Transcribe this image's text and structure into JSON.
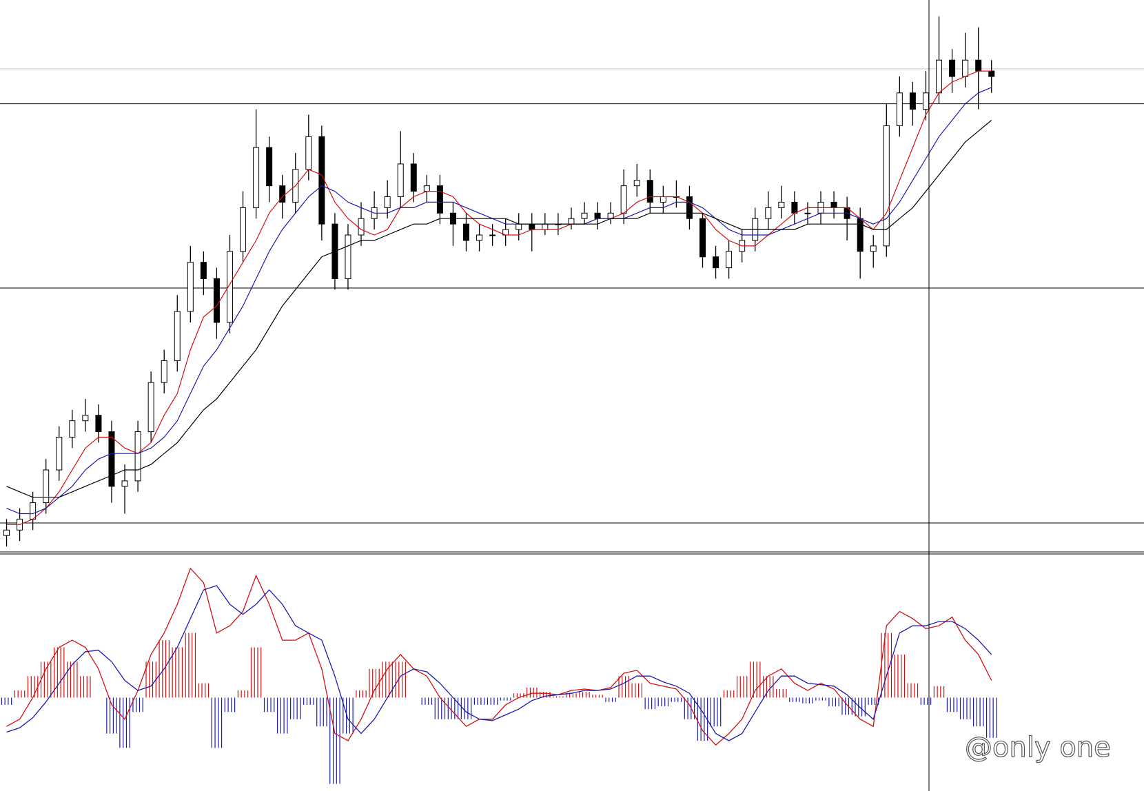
{
  "chart_data": [
    {
      "type": "candlestick",
      "ylim": [
        0,
        101
      ],
      "open": [
        3,
        4,
        6,
        9,
        15,
        21,
        24,
        25,
        22,
        12,
        13,
        22,
        31,
        35,
        44,
        53,
        50,
        42,
        55,
        63,
        74,
        67,
        64,
        70,
        76,
        60,
        50,
        58,
        61,
        63,
        65,
        71,
        66,
        67,
        62,
        60,
        57,
        58,
        58,
        59,
        60,
        59,
        60,
        60,
        61,
        62,
        61,
        62,
        67,
        68,
        64,
        65,
        65,
        61,
        54,
        52,
        55,
        57,
        61,
        63,
        64,
        62,
        62,
        64,
        63,
        61,
        55,
        56,
        78,
        84,
        81,
        84,
        90,
        87,
        90,
        88
      ],
      "high": [
        6,
        8,
        11,
        17,
        23,
        26,
        28,
        27,
        24,
        16,
        24,
        33,
        37,
        47,
        56,
        55,
        52,
        58,
        66,
        81,
        76,
        69,
        73,
        80,
        78,
        62,
        60,
        64,
        66,
        68,
        77,
        73,
        69,
        69,
        64,
        62,
        60,
        60,
        61,
        62,
        62,
        62,
        62,
        63,
        64,
        64,
        64,
        70,
        71,
        70,
        67,
        68,
        67,
        62,
        56,
        57,
        59,
        63,
        66,
        67,
        66,
        64,
        66,
        66,
        65,
        63,
        58,
        82,
        87,
        86,
        88,
        98,
        92,
        95,
        96,
        90
      ],
      "low": [
        1,
        2,
        4,
        7,
        13,
        19,
        22,
        20,
        9,
        7,
        11,
        20,
        29,
        33,
        42,
        47,
        39,
        40,
        53,
        61,
        64,
        61,
        62,
        68,
        57,
        48,
        48,
        56,
        59,
        61,
        63,
        64,
        64,
        60,
        56,
        55,
        55,
        56,
        56,
        57,
        55,
        58,
        58,
        59,
        60,
        59,
        60,
        60,
        65,
        62,
        62,
        63,
        59,
        52,
        50,
        50,
        53,
        55,
        59,
        61,
        60,
        60,
        60,
        61,
        57,
        50,
        52,
        54,
        76,
        78,
        79,
        82,
        84,
        85,
        81,
        84
      ],
      "close": [
        4,
        6,
        9,
        15,
        21,
        24,
        25,
        22,
        12,
        13,
        22,
        31,
        35,
        44,
        53,
        50,
        42,
        55,
        63,
        74,
        67,
        64,
        70,
        76,
        60,
        50,
        58,
        61,
        63,
        65,
        71,
        66,
        67,
        62,
        60,
        57,
        58,
        58,
        59,
        60,
        59,
        60,
        60,
        61,
        62,
        61,
        62,
        67,
        68,
        64,
        65,
        65,
        61,
        54,
        52,
        55,
        57,
        61,
        63,
        64,
        62,
        62,
        64,
        63,
        61,
        55,
        56,
        78,
        84,
        81,
        84,
        90,
        87,
        90,
        88,
        87
      ],
      "bull_color": "#ffffff",
      "bear_color": "#000000",
      "lines": [
        {
          "color": "#d01010",
          "values": [
            5,
            5,
            6,
            8,
            11,
            15,
            19,
            21,
            21,
            19,
            18,
            20,
            25,
            29,
            37,
            43,
            45,
            49,
            53,
            57,
            62,
            65,
            67,
            70,
            69,
            64,
            61,
            59,
            58,
            59,
            63,
            65,
            66,
            66,
            65,
            62,
            60,
            59,
            58,
            58,
            59,
            59,
            59,
            60,
            60,
            61,
            61,
            62,
            64,
            65,
            65,
            65,
            64,
            62,
            59,
            57,
            56,
            56,
            58,
            60,
            62,
            63,
            63,
            63,
            63,
            61,
            59,
            62,
            68,
            74,
            80,
            84,
            86,
            87,
            88,
            88
          ]
        },
        {
          "color": "#1a1ab0",
          "values": [
            8,
            7,
            7,
            8,
            10,
            12,
            15,
            17,
            18,
            18,
            18,
            19,
            21,
            24,
            29,
            34,
            37,
            41,
            45,
            50,
            55,
            59,
            62,
            65,
            67,
            66,
            64,
            63,
            62,
            62,
            63,
            63,
            64,
            64,
            64,
            63,
            62,
            61,
            60,
            60,
            60,
            60,
            60,
            60,
            60,
            61,
            61,
            61,
            62,
            63,
            63,
            64,
            64,
            63,
            61,
            59,
            58,
            58,
            58,
            59,
            60,
            61,
            62,
            62,
            62,
            61,
            60,
            61,
            64,
            68,
            72,
            76,
            79,
            82,
            84,
            85
          ]
        },
        {
          "color": "#000000",
          "values": [
            12,
            11,
            10,
            10,
            10,
            11,
            12,
            13,
            14,
            15,
            15,
            16,
            18,
            20,
            23,
            26,
            28,
            31,
            34,
            37,
            41,
            45,
            48,
            51,
            54,
            55,
            56,
            57,
            57,
            58,
            59,
            60,
            60,
            61,
            61,
            61,
            61,
            61,
            61,
            60,
            60,
            60,
            60,
            60,
            60,
            60,
            61,
            61,
            61,
            62,
            62,
            62,
            62,
            62,
            61,
            60,
            59,
            59,
            59,
            59,
            59,
            60,
            60,
            60,
            60,
            60,
            59,
            59,
            61,
            63,
            66,
            69,
            72,
            75,
            77,
            79
          ]
        }
      ],
      "hlines": [
        {
          "value": 88.4,
          "color": "#c8c8c8"
        },
        {
          "value": 82,
          "color": "#000000"
        },
        {
          "value": 48.3,
          "color": "#000000"
        },
        {
          "value": 5.3,
          "color": "#000000"
        }
      ]
    },
    {
      "type": "macd",
      "ylim": [
        -6.5,
        10
      ],
      "histogram": {
        "positive_color": "#d01010",
        "negative_color": "#1a1ab0",
        "values": [
          -0.5,
          0.5,
          1.5,
          2.5,
          3.5,
          2.5,
          1.5,
          0,
          -2.5,
          -3.5,
          -1,
          2.5,
          4,
          3.5,
          4.5,
          1,
          -3.5,
          -1,
          0.5,
          3.5,
          -1,
          -2.5,
          -1.5,
          -0.5,
          -2,
          -6,
          -2.5,
          0.5,
          2,
          2.5,
          2.5,
          0,
          -0.5,
          -1.5,
          -1.5,
          -1.5,
          -0.5,
          -0.5,
          -0.2,
          0.3,
          0.7,
          0.4,
          0.1,
          0.3,
          0.4,
          0.2,
          -0.3,
          1.5,
          1,
          -0.8,
          -0.6,
          -0.3,
          -1.5,
          -3,
          -2,
          0.5,
          1.5,
          2.5,
          1.5,
          0.6,
          -0.3,
          -0.4,
          -0.2,
          -0.6,
          -1.2,
          -1.3,
          -0.5,
          4.5,
          3,
          1,
          -0.5,
          0.8,
          -1,
          -1.5,
          -2,
          -2.8
        ]
      },
      "series": [
        {
          "color": "#d01010",
          "values": [
            -2,
            -1.5,
            0,
            2,
            3.5,
            4,
            3.5,
            2,
            -0.5,
            -1.5,
            0.5,
            3,
            4.5,
            6.5,
            9,
            8,
            4.5,
            5,
            6,
            8.5,
            6.5,
            4,
            4,
            4.5,
            2,
            -2.5,
            -3,
            -1.5,
            0.5,
            2,
            3,
            2,
            1.5,
            0,
            -1,
            -2,
            -1.5,
            -1.5,
            -0.5,
            0,
            0.3,
            0.3,
            0.2,
            0.5,
            0.6,
            0.5,
            0.7,
            1.7,
            1.9,
            1,
            0.8,
            0.6,
            -0.5,
            -2.3,
            -3.3,
            -2.5,
            -1.5,
            0.5,
            1.5,
            2,
            1,
            0.5,
            1,
            0.6,
            -0.5,
            -1.5,
            -2,
            5,
            6,
            5.5,
            4.8,
            5,
            5.6,
            4,
            3,
            1.2
          ]
        },
        {
          "color": "#1a1ab0",
          "values": [
            -2.4,
            -2.1,
            -1.4,
            -0.3,
            1,
            2.3,
            3.2,
            3.3,
            2.5,
            1.2,
            0.5,
            0.8,
            2,
            3.5,
            5.5,
            7.5,
            7.8,
            6.5,
            5.8,
            6.5,
            7.5,
            6.5,
            5,
            4.5,
            4,
            1.5,
            -1.5,
            -2.5,
            -1.5,
            0,
            1.5,
            2,
            1.8,
            1,
            0,
            -1,
            -1.5,
            -1.6,
            -1.2,
            -0.8,
            -0.2,
            0.1,
            0.2,
            0.3,
            0.5,
            0.5,
            0.6,
            1,
            1.5,
            1.5,
            1.1,
            0.8,
            0.3,
            -1,
            -2.5,
            -3,
            -2.5,
            -1,
            0.5,
            1.5,
            1.5,
            1,
            0.9,
            0.8,
            0.2,
            -0.7,
            -1.5,
            1.5,
            4.5,
            5,
            5,
            5.3,
            5.3,
            4.8,
            4,
            3
          ]
        }
      ]
    }
  ],
  "watermark": "@only one"
}
